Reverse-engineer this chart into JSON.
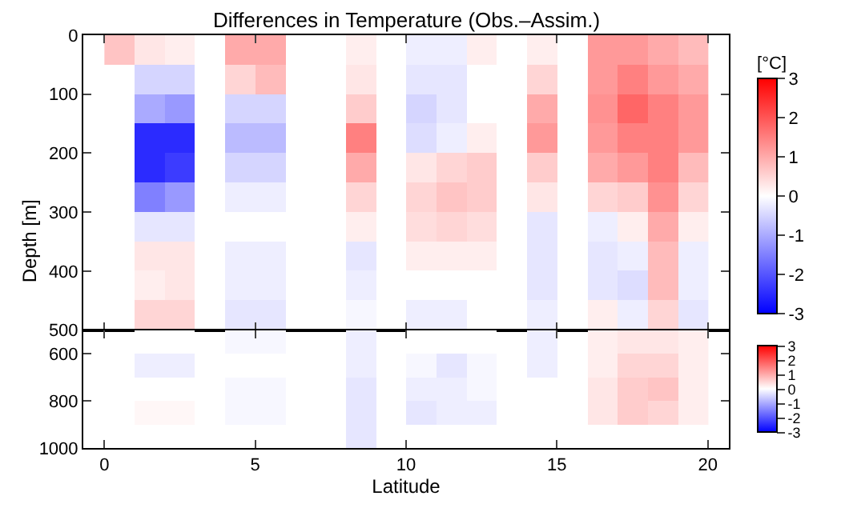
{
  "chart_data": [
    {
      "type": "heatmap",
      "title": "Differences in Temperature (Obs.–Assim.)",
      "ylabel": "Depth [m]",
      "clabel": "[°C]",
      "x": [
        0.5,
        1.5,
        2.5,
        3.5,
        4.5,
        5.5,
        6.5,
        7.5,
        8.5,
        9.5,
        10.5,
        11.5,
        12.5,
        13.5,
        14.5,
        15.5,
        16.5,
        17.5,
        18.5,
        19.5
      ],
      "y": [
        25,
        75,
        125,
        175,
        225,
        275,
        325,
        375,
        425,
        475
      ],
      "cells": [
        [
          0.7,
          0.3,
          0.2,
          null,
          1,
          1,
          null,
          null,
          0.2,
          null,
          -0.2,
          -0.2,
          0.2,
          null,
          0.2,
          null,
          1.2,
          1.2,
          1,
          0.8
        ],
        [
          null,
          -0.5,
          -0.5,
          null,
          0.5,
          0.8,
          null,
          null,
          0.3,
          null,
          -0.3,
          -0.3,
          0,
          null,
          0.5,
          null,
          1.2,
          1.5,
          1.2,
          1
        ],
        [
          null,
          -1,
          -1.2,
          null,
          -0.5,
          -0.5,
          null,
          null,
          0.6,
          null,
          -0.5,
          -0.3,
          0,
          null,
          1,
          null,
          1.3,
          1.8,
          1.5,
          1.2
        ],
        [
          null,
          -2.5,
          -2.5,
          null,
          -0.8,
          -0.8,
          null,
          null,
          1.5,
          null,
          -0.4,
          -0.2,
          0.2,
          null,
          1.2,
          null,
          1.2,
          1.5,
          1.5,
          1.2
        ],
        [
          null,
          -2.5,
          -2.3,
          null,
          -0.5,
          -0.5,
          null,
          null,
          1,
          null,
          0.3,
          0.5,
          0.6,
          null,
          0.6,
          null,
          1,
          1.2,
          1.5,
          0.8
        ],
        [
          null,
          -1.5,
          -1.2,
          null,
          -0.2,
          -0.2,
          null,
          null,
          0.5,
          null,
          0.5,
          0.7,
          0.6,
          null,
          0.3,
          null,
          0.5,
          0.6,
          1.3,
          0.5
        ],
        [
          null,
          -0.3,
          -0.3,
          null,
          0,
          0,
          null,
          null,
          0.2,
          null,
          0.4,
          0.5,
          0.4,
          null,
          -0.3,
          null,
          -0.2,
          0.2,
          1,
          0.2
        ],
        [
          null,
          0.3,
          0.3,
          null,
          -0.2,
          -0.2,
          null,
          null,
          -0.3,
          null,
          0.2,
          0.2,
          0.2,
          null,
          -0.3,
          null,
          -0.3,
          -0.2,
          0.8,
          -0.2
        ],
        [
          null,
          0.2,
          0.3,
          null,
          -0.2,
          -0.2,
          null,
          null,
          -0.2,
          null,
          0,
          0,
          0,
          null,
          -0.3,
          null,
          -0.3,
          -0.4,
          0.8,
          -0.2
        ],
        [
          null,
          0.5,
          0.5,
          null,
          -0.3,
          -0.3,
          null,
          null,
          -0.1,
          null,
          -0.2,
          -0.2,
          0,
          null,
          -0.2,
          null,
          0.2,
          -0.2,
          0.5,
          -0.3
        ]
      ],
      "xlim": [
        -0.7,
        20.7
      ],
      "xticks": [
        0,
        5,
        10,
        15,
        20
      ],
      "ylim": [
        500,
        0
      ],
      "yticks": [
        0,
        100,
        200,
        300,
        400,
        500
      ],
      "clim": [
        -3,
        3
      ],
      "cticks": [
        -3,
        -2,
        -1,
        0,
        1,
        2,
        3
      ],
      "tick_labels": "y"
    },
    {
      "type": "heatmap",
      "xlabel": "Latitude",
      "x": [
        0.5,
        1.5,
        2.5,
        3.5,
        4.5,
        5.5,
        6.5,
        7.5,
        8.5,
        9.5,
        10.5,
        11.5,
        12.5,
        13.5,
        14.5,
        15.5,
        16.5,
        17.5,
        18.5,
        19.5
      ],
      "y": [
        550,
        650,
        750,
        850,
        950
      ],
      "cells": [
        [
          null,
          0,
          0,
          null,
          -0.1,
          -0.1,
          null,
          null,
          -0.2,
          null,
          0,
          0,
          0,
          null,
          -0.2,
          null,
          0.2,
          0.3,
          0.3,
          0.2
        ],
        [
          null,
          -0.2,
          -0.2,
          null,
          0,
          0,
          null,
          null,
          -0.2,
          null,
          -0.1,
          -0.3,
          -0.1,
          null,
          -0.2,
          null,
          0.2,
          0.5,
          0.5,
          0.2
        ],
        [
          null,
          0,
          0,
          null,
          -0.1,
          -0.1,
          null,
          null,
          -0.3,
          null,
          -0.2,
          -0.2,
          -0.1,
          null,
          null,
          null,
          0.3,
          0.6,
          0.7,
          0.2
        ],
        [
          null,
          0.1,
          0.1,
          null,
          -0.1,
          -0.1,
          null,
          null,
          -0.3,
          null,
          -0.3,
          -0.2,
          -0.2,
          null,
          null,
          null,
          0.3,
          0.6,
          0.5,
          0.2
        ],
        [
          null,
          null,
          null,
          null,
          null,
          null,
          null,
          null,
          -0.3,
          null,
          null,
          null,
          null,
          null,
          null,
          null,
          null,
          null,
          null,
          null
        ]
      ],
      "xlim": [
        -0.7,
        20.7
      ],
      "xticks": [
        0,
        5,
        10,
        15,
        20
      ],
      "ylim": [
        1000,
        500
      ],
      "yticks": [
        600,
        800,
        1000
      ],
      "clim": [
        -3,
        3
      ],
      "cticks": [
        -3,
        -2,
        -1,
        0,
        1,
        2,
        3
      ]
    }
  ]
}
